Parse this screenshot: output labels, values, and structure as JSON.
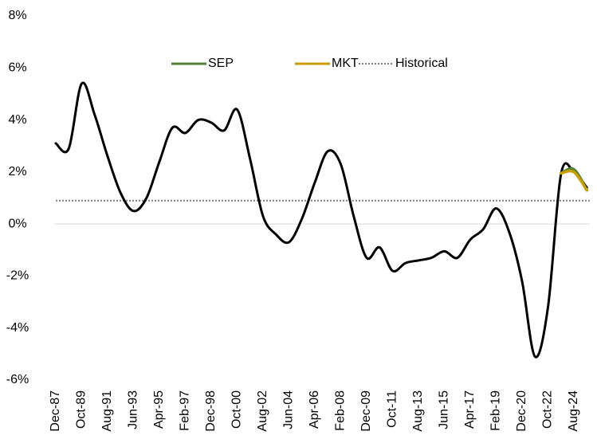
{
  "chart_data": {
    "type": "line",
    "categories": [
      "Dec-87",
      null,
      "Oct-89",
      null,
      "Aug-91",
      null,
      "Jun-93",
      null,
      "Apr-95",
      null,
      "Feb-97",
      null,
      "Dec-98",
      null,
      "Oct-00",
      null,
      "Aug-02",
      null,
      "Jun-04",
      null,
      "Apr-06",
      null,
      "Feb-08",
      null,
      "Dec-09",
      null,
      "Oct-11",
      null,
      "Aug-13",
      null,
      "Jun-15",
      null,
      "Apr-17",
      null,
      "Feb-19",
      null,
      "Dec-20",
      null,
      "Oct-22",
      null,
      "Aug-24",
      null
    ],
    "series": [
      {
        "color": "#000000",
        "values": [
          3.1,
          2.9,
          5.4,
          4.2,
          2.6,
          1.2,
          0.5,
          1.0,
          2.4,
          3.7,
          3.5,
          4.0,
          3.9,
          3.6,
          4.4,
          2.5,
          0.3,
          -0.4,
          -0.7,
          0.2,
          1.6,
          2.8,
          2.3,
          0.3,
          -1.3,
          -0.9,
          -1.8,
          -1.5,
          -1.4,
          -1.3,
          -1.05,
          -1.3,
          -0.6,
          -0.2,
          0.6,
          -0.3,
          -2.2,
          -5.1,
          -3.2,
          1.9,
          2.0,
          1.4
        ]
      },
      {
        "name": "SEP",
        "color": "#548235",
        "values": [
          null,
          null,
          null,
          null,
          null,
          null,
          null,
          null,
          null,
          null,
          null,
          null,
          null,
          null,
          null,
          null,
          null,
          null,
          null,
          null,
          null,
          null,
          null,
          null,
          null,
          null,
          null,
          null,
          null,
          null,
          null,
          null,
          null,
          null,
          null,
          null,
          null,
          null,
          null,
          1.95,
          2.1,
          1.3
        ]
      },
      {
        "name": "MKT",
        "color": "#c9a000",
        "values": [
          null,
          null,
          null,
          null,
          null,
          null,
          null,
          null,
          null,
          null,
          null,
          null,
          null,
          null,
          null,
          null,
          null,
          null,
          null,
          null,
          null,
          null,
          null,
          null,
          null,
          null,
          null,
          null,
          null,
          null,
          null,
          null,
          null,
          null,
          null,
          null,
          null,
          null,
          null,
          1.95,
          2.0,
          1.3
        ]
      }
    ],
    "reference_lines": [
      {
        "name": "Historical",
        "value": 0.9,
        "color": "#808080",
        "style": "dotted"
      }
    ],
    "ylim": [
      -6,
      8
    ],
    "yticks": [
      {
        "value": -6,
        "label": "-6%"
      },
      {
        "value": -4,
        "label": "-4%"
      },
      {
        "value": -2,
        "label": "-2%"
      },
      {
        "value": 0,
        "label": "0%"
      },
      {
        "value": 2,
        "label": "2%"
      },
      {
        "value": 4,
        "label": "4%"
      },
      {
        "value": 6,
        "label": "6%"
      },
      {
        "value": 8,
        "label": "8%"
      }
    ],
    "grid": false,
    "legend": "top"
  }
}
